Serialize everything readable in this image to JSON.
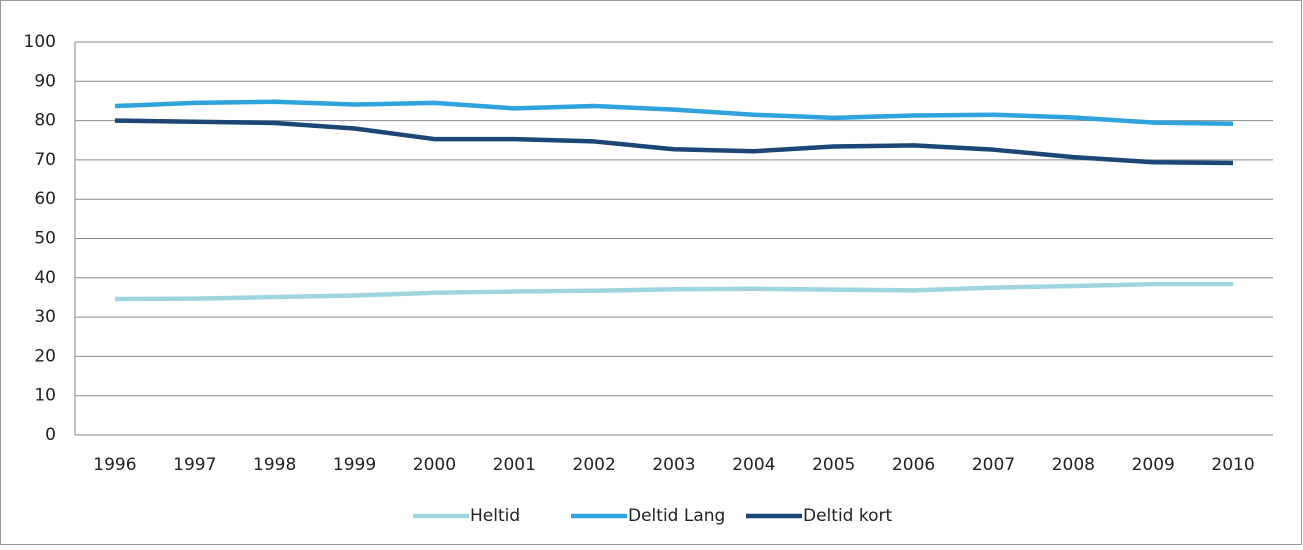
{
  "chart_data": {
    "type": "line",
    "categories": [
      "1996",
      "1997",
      "1998",
      "1999",
      "2000",
      "2001",
      "2002",
      "2003",
      "2004",
      "2005",
      "2006",
      "2007",
      "2008",
      "2009",
      "2010"
    ],
    "series": [
      {
        "name": "Heltid",
        "color": "#9fd5e0",
        "values": [
          34.6,
          34.7,
          35.1,
          35.5,
          36.2,
          36.5,
          36.7,
          37.1,
          37.2,
          37.0,
          36.8,
          37.5,
          37.9,
          38.4,
          38.4
        ]
      },
      {
        "name": "Deltid Lang",
        "color": "#2fa3dc",
        "values": [
          83.7,
          84.5,
          84.8,
          84.1,
          84.5,
          83.1,
          83.7,
          82.8,
          81.5,
          80.7,
          81.3,
          81.5,
          80.8,
          79.5,
          79.2
        ]
      },
      {
        "name": "Deltid kort",
        "color": "#1c4673",
        "values": [
          80.0,
          79.7,
          79.4,
          78.0,
          75.3,
          75.3,
          74.7,
          72.7,
          72.2,
          73.4,
          73.7,
          72.6,
          70.7,
          69.4,
          69.2
        ]
      }
    ],
    "ylim": [
      0,
      100
    ],
    "yticks": [
      0,
      10,
      20,
      30,
      40,
      50,
      60,
      70,
      80,
      90,
      100
    ],
    "grid": true,
    "legend": "bottom"
  }
}
